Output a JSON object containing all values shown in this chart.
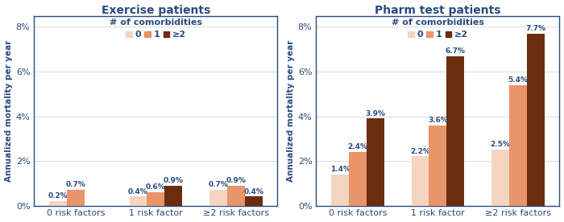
{
  "exercise": {
    "title": "Exercise patients",
    "categories": [
      "0 risk factors",
      "1 risk factor",
      "≥2 risk factors"
    ],
    "values_0": [
      0.2,
      0.4,
      0.7
    ],
    "values_1": [
      0.7,
      0.6,
      0.9
    ],
    "values_2": [
      0.0,
      0.9,
      0.4
    ],
    "labels_0": [
      "0.2%",
      "0.4%",
      "0.7%"
    ],
    "labels_1": [
      "0.7%",
      "0.6%",
      "0.9%"
    ],
    "labels_2": [
      "",
      "0.9%",
      "0.4%"
    ],
    "ylim": [
      0,
      8.5
    ],
    "yticks": [
      0,
      2,
      4,
      6,
      8
    ],
    "ytick_labels": [
      "0%",
      "2%",
      "4%",
      "6%",
      "8%"
    ]
  },
  "pharm": {
    "title": "Pharm test patients",
    "categories": [
      "0 risk factors",
      "1 risk factor",
      "≥2 risk factors"
    ],
    "values_0": [
      1.4,
      2.2,
      2.5
    ],
    "values_1": [
      2.4,
      3.6,
      5.4
    ],
    "values_2": [
      3.9,
      6.7,
      7.7
    ],
    "labels_0": [
      "1.4%",
      "2.2%",
      "2.5%"
    ],
    "labels_1": [
      "2.4%",
      "3.6%",
      "5.4%"
    ],
    "labels_2": [
      "3.9%",
      "6.7%",
      "7.7%"
    ],
    "ylim": [
      0,
      8.5
    ],
    "yticks": [
      0,
      2,
      4,
      6,
      8
    ],
    "ytick_labels": [
      "0%",
      "2%",
      "4%",
      "6%",
      "8%"
    ]
  },
  "color_0": "#f5d5c0",
  "color_1": "#e8956a",
  "color_2": "#6b2d0f",
  "legend_labels": [
    "0",
    "1",
    "≥2"
  ],
  "legend_title": "# of comorbidities",
  "ylabel": "Annualized mortality per year",
  "bar_width": 0.22,
  "label_color": "#2a4a7f",
  "title_color": "#2a4a7f",
  "axis_label_color": "#2a4a7f",
  "tick_color": "#2a4a7f",
  "border_color": "#2a4a7f",
  "grid_color": "#cccccc",
  "background_color": "#ffffff",
  "label_fontsize": 6.5,
  "title_fontsize": 10,
  "legend_fontsize": 8,
  "ylabel_fontsize": 7.5,
  "tick_fontsize": 8
}
